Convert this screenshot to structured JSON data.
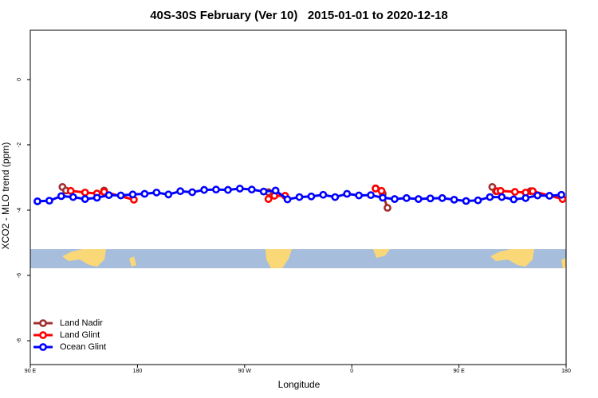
{
  "chart_data": {
    "type": "line",
    "title": "40S-30S February (Ver 10)   2015-01-01 to 2020-12-18",
    "x_label": "Longitude",
    "y_label": "XCO2 - MLO trend (ppm)",
    "xlim": [
      90,
      540
    ],
    "ylim": [
      -8.73,
      1.51
    ],
    "xticks": [
      {
        "value": 90,
        "label": "90 E"
      },
      180,
      {
        "value": 270,
        "label": "90 W"
      },
      {
        "value": 360,
        "label": "0"
      },
      {
        "value": 450,
        "label": "90 E"
      },
      {
        "value": 540,
        "label": "180"
      }
    ],
    "yticks": [
      0,
      -2,
      -4,
      -6,
      -8
    ],
    "legend": "bottom-left",
    "series": [
      {
        "name": "Land Nadir",
        "color": "#a03030",
        "x": [
          117,
          120,
          135,
          152,
          220,
          290,
          340,
          380,
          386,
          390,
          440,
          478,
          481,
          495,
          510
        ],
        "values": [
          -3.29,
          -3.4,
          null,
          -3.4,
          null,
          -3.45,
          null,
          -3.33,
          -3.5,
          -3.93,
          null,
          -3.29,
          -3.42,
          null,
          -3.42
        ]
      },
      {
        "name": "Land Glint",
        "color": "#ff0000",
        "x": [
          124,
          136,
          146,
          152,
          177,
          230,
          290,
          295,
          304,
          340,
          380,
          385,
          430,
          482,
          485,
          497,
          506,
          512,
          537
        ],
        "values": [
          -3.41,
          -3.46,
          -3.49,
          -3.44,
          -3.68,
          null,
          -3.66,
          -3.56,
          -3.56,
          null,
          -3.34,
          -3.41,
          null,
          -3.42,
          -3.41,
          -3.44,
          -3.46,
          -3.42,
          -3.66
        ]
      },
      {
        "name": "Ocean Glint",
        "color": "#0000ff",
        "x": [
          96,
          106,
          116,
          126,
          136,
          146,
          156,
          166,
          176,
          186,
          196,
          206,
          216,
          226,
          236,
          246,
          256,
          266,
          276,
          286,
          296,
          306,
          316,
          326,
          336,
          346,
          356,
          366,
          376,
          386,
          396,
          406,
          416,
          426,
          436,
          446,
          456,
          466,
          476,
          486,
          496,
          506,
          516,
          526,
          536
        ],
        "values": [
          -3.73,
          -3.71,
          -3.57,
          -3.6,
          -3.66,
          -3.62,
          -3.54,
          -3.55,
          -3.52,
          -3.5,
          -3.46,
          -3.52,
          -3.42,
          -3.45,
          -3.38,
          -3.37,
          -3.38,
          -3.34,
          -3.37,
          -3.43,
          -3.4,
          -3.67,
          -3.6,
          -3.58,
          -3.53,
          -3.6,
          -3.5,
          -3.55,
          -3.54,
          -3.62,
          -3.66,
          -3.63,
          -3.66,
          -3.64,
          -3.63,
          -3.68,
          -3.72,
          -3.7,
          -3.6,
          -3.6,
          -3.67,
          -3.63,
          -3.55,
          -3.56,
          -3.53
        ]
      }
    ]
  }
}
